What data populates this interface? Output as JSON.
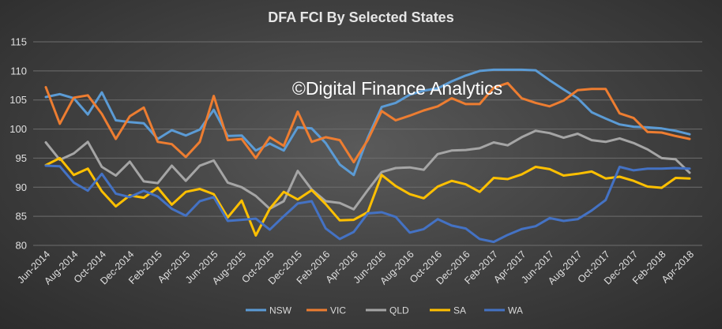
{
  "chart_data": {
    "type": "line",
    "title": "DFA FCI By Selected States",
    "watermark": "©Digital Finance Analytics",
    "ylim": [
      80,
      115
    ],
    "yticks": [
      80,
      85,
      90,
      95,
      100,
      105,
      110,
      115
    ],
    "grid": true,
    "legend_position": "bottom",
    "x_tick_labels": [
      "Jun-2014",
      "Aug-2014",
      "Oct-2014",
      "Dec-2014",
      "Feb-2015",
      "Apr-2015",
      "Jun-2015",
      "Aug-2015",
      "Oct-2015",
      "Dec-2015",
      "Feb-2016",
      "Apr-2016",
      "Jun-2016",
      "Aug-2016",
      "Oct-2016",
      "Dec-2016",
      "Feb-2017",
      "Apr-2017",
      "Jun-2017",
      "Aug-2017",
      "Oct-2017",
      "Dec-2017",
      "Feb-2018",
      "Apr-2018"
    ],
    "series": [
      {
        "name": "NSW",
        "color": "#5b9bd5",
        "values": [
          105.5,
          106,
          105.3,
          102.5,
          106.3,
          101.5,
          101.2,
          101,
          98.3,
          99.8,
          98.9,
          99.9,
          103.3,
          98.8,
          98.9,
          96.3,
          97.5,
          96.3,
          100.3,
          100.1,
          97.6,
          93.9,
          92.1,
          98.5,
          103.8,
          104.5,
          105.9,
          106.6,
          107,
          108.2,
          109.2,
          110,
          110.2,
          110.2,
          110.2,
          110.1,
          108.4,
          106.8,
          105.3,
          102.9,
          101.8,
          100.8,
          100.4,
          100.3,
          100.1,
          99.7,
          99.1
        ]
      },
      {
        "name": "VIC",
        "color": "#ed7d31",
        "values": [
          107.2,
          100.9,
          105.4,
          105.8,
          102.6,
          98.3,
          102.2,
          103.7,
          97.8,
          97.4,
          95.2,
          97.8,
          105.7,
          98.1,
          98.3,
          95,
          98.6,
          97.1,
          103,
          97.8,
          98.6,
          98.1,
          94.3,
          98.1,
          103.1,
          101.5,
          102.3,
          103.2,
          103.9,
          105.3,
          104.3,
          104.3,
          107.1,
          107.9,
          105.3,
          104.5,
          103.9,
          104.9,
          106.7,
          106.9,
          106.9,
          102.7,
          101.9,
          99.5,
          99.4,
          98.8,
          98.3
        ]
      },
      {
        "name": "QLD",
        "color": "#a5a5a5",
        "values": [
          97.7,
          94.7,
          95.8,
          97.8,
          93.5,
          92,
          94.4,
          91,
          90.7,
          93.7,
          91.1,
          93.7,
          94.6,
          90.8,
          90,
          88.5,
          86.3,
          87.6,
          92.8,
          89.6,
          87.6,
          87.3,
          86.2,
          89.5,
          92.6,
          93.3,
          93.4,
          93,
          95.7,
          96.3,
          96.4,
          96.7,
          97.7,
          97.2,
          98.6,
          99.7,
          99.3,
          98.5,
          99.2,
          98.1,
          97.8,
          98.4,
          97.6,
          96.5,
          95,
          94.8,
          92.5
        ]
      },
      {
        "name": "SA",
        "color": "#ffc000",
        "values": [
          93.8,
          95,
          92.1,
          93.2,
          89.3,
          86.7,
          88.6,
          88.2,
          89.9,
          87,
          89.2,
          89.7,
          88.8,
          84.8,
          87.7,
          81.7,
          86.3,
          89.2,
          87.9,
          89.5,
          87.1,
          84.3,
          84.4,
          85.7,
          92.1,
          90.2,
          88.8,
          88.1,
          90.1,
          91.1,
          90.5,
          89.2,
          91.6,
          91.4,
          92.2,
          93.5,
          93.1,
          92,
          92.3,
          92.7,
          91.5,
          91.8,
          91.1,
          90.1,
          89.9,
          91.6,
          91.5
        ]
      },
      {
        "name": "WA",
        "color": "#4472c4",
        "values": [
          93.7,
          93.6,
          90.8,
          89.4,
          92.3,
          88.9,
          88.3,
          89.4,
          88.4,
          86.3,
          85.1,
          87.6,
          88.3,
          84.2,
          84.4,
          84.6,
          82.7,
          85,
          87.2,
          87.6,
          82.9,
          81.1,
          82.3,
          85.5,
          85.7,
          84.9,
          82.2,
          82.8,
          84.5,
          83.4,
          82.9,
          81.1,
          80.6,
          81.8,
          82.8,
          83.3,
          84.7,
          84.2,
          84.5,
          86,
          87.8,
          93.5,
          92.9,
          93.2,
          93.2,
          93.3,
          93.2
        ]
      }
    ]
  }
}
